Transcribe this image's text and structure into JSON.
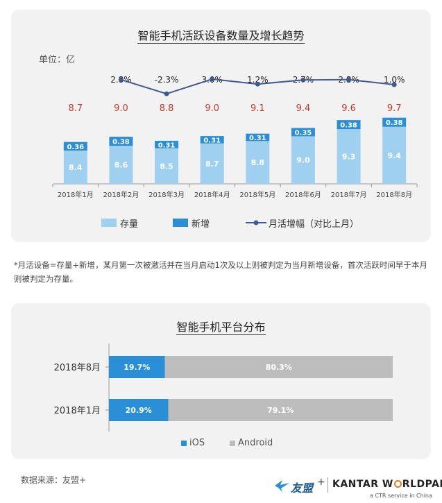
{
  "chart1": {
    "title": "智能手机活跃设备数量及增长趋势",
    "unit_label": "单位：亿",
    "legend": {
      "stock": "存量",
      "new": "新增",
      "growth": "月活增幅（对比上月）"
    },
    "colors": {
      "stock": "#9fd0f0",
      "new": "#2a8fd6",
      "growth_line": "#3e5a93",
      "total_text": "#c0392b"
    }
  },
  "chart_data": [
    {
      "type": "bar",
      "title": "智能手机活跃设备数量及增长趋势",
      "categories": [
        "2018年1月",
        "2018年2月",
        "2018年3月",
        "2018年4月",
        "2018年5月",
        "2018年6月",
        "2018年7月",
        "2018年8月"
      ],
      "series": [
        {
          "name": "存量",
          "type": "bar",
          "stacked": true,
          "values": [
            8.4,
            8.6,
            8.5,
            8.7,
            8.8,
            9.0,
            9.3,
            9.4
          ],
          "labels": [
            "8.4",
            "8.6",
            "8.5",
            "8.7",
            "8.8",
            "9.0",
            "9.3",
            "9.4"
          ]
        },
        {
          "name": "新增",
          "type": "bar",
          "stacked": true,
          "values": [
            0.36,
            0.38,
            0.31,
            0.31,
            0.31,
            0.35,
            0.38,
            0.38
          ],
          "labels": [
            "0.36",
            "0.38",
            "0.31",
            "0.31",
            "0.31",
            "0.35",
            "0.38",
            "0.38"
          ]
        },
        {
          "name": "月活增幅（对比上月）",
          "type": "line",
          "values": [
            null,
            2.8,
            -2.3,
            3.0,
            1.2,
            2.7,
            2.8,
            1.0
          ],
          "labels": [
            "",
            "2.8%",
            "-2.3%",
            "3.0%",
            "1.2%",
            "2.7%",
            "2.8%",
            "1.0%"
          ]
        }
      ],
      "totals": [
        "8.7",
        "9.0",
        "8.8",
        "9.0",
        "9.1",
        "9.4",
        "9.6",
        "9.7"
      ],
      "ylabel": "单位：亿"
    },
    {
      "type": "bar",
      "orientation": "horizontal",
      "stacked_percent": true,
      "title": "智能手机平台分布",
      "categories": [
        "2018年8月",
        "2018年1月"
      ],
      "series": [
        {
          "name": "iOS",
          "values": [
            19.7,
            20.9
          ],
          "labels": [
            "19.7%",
            "20.9%"
          ],
          "color": "#2a8fd6"
        },
        {
          "name": "Android",
          "values": [
            80.3,
            79.1
          ],
          "labels": [
            "80.3%",
            "79.1%"
          ],
          "color": "#bdbdbd"
        }
      ]
    }
  ],
  "chart2": {
    "title": "智能手机平台分布",
    "legend": {
      "ios": "iOS",
      "android": "Android"
    }
  },
  "footnote": "*月活设备=存量+新增，某月第一次被激活并在当月启动1次及以上则被判定为当月新增设备，首次活跃时间早于本月则被判定为存量。",
  "source": "数据来源：友盟+",
  "logos": {
    "umeng": "友盟",
    "plus": "+",
    "kantar_a": "KANTAR W",
    "kantar_b": "RLDPANEL",
    "kantar_tag": "a CTR service in China"
  }
}
